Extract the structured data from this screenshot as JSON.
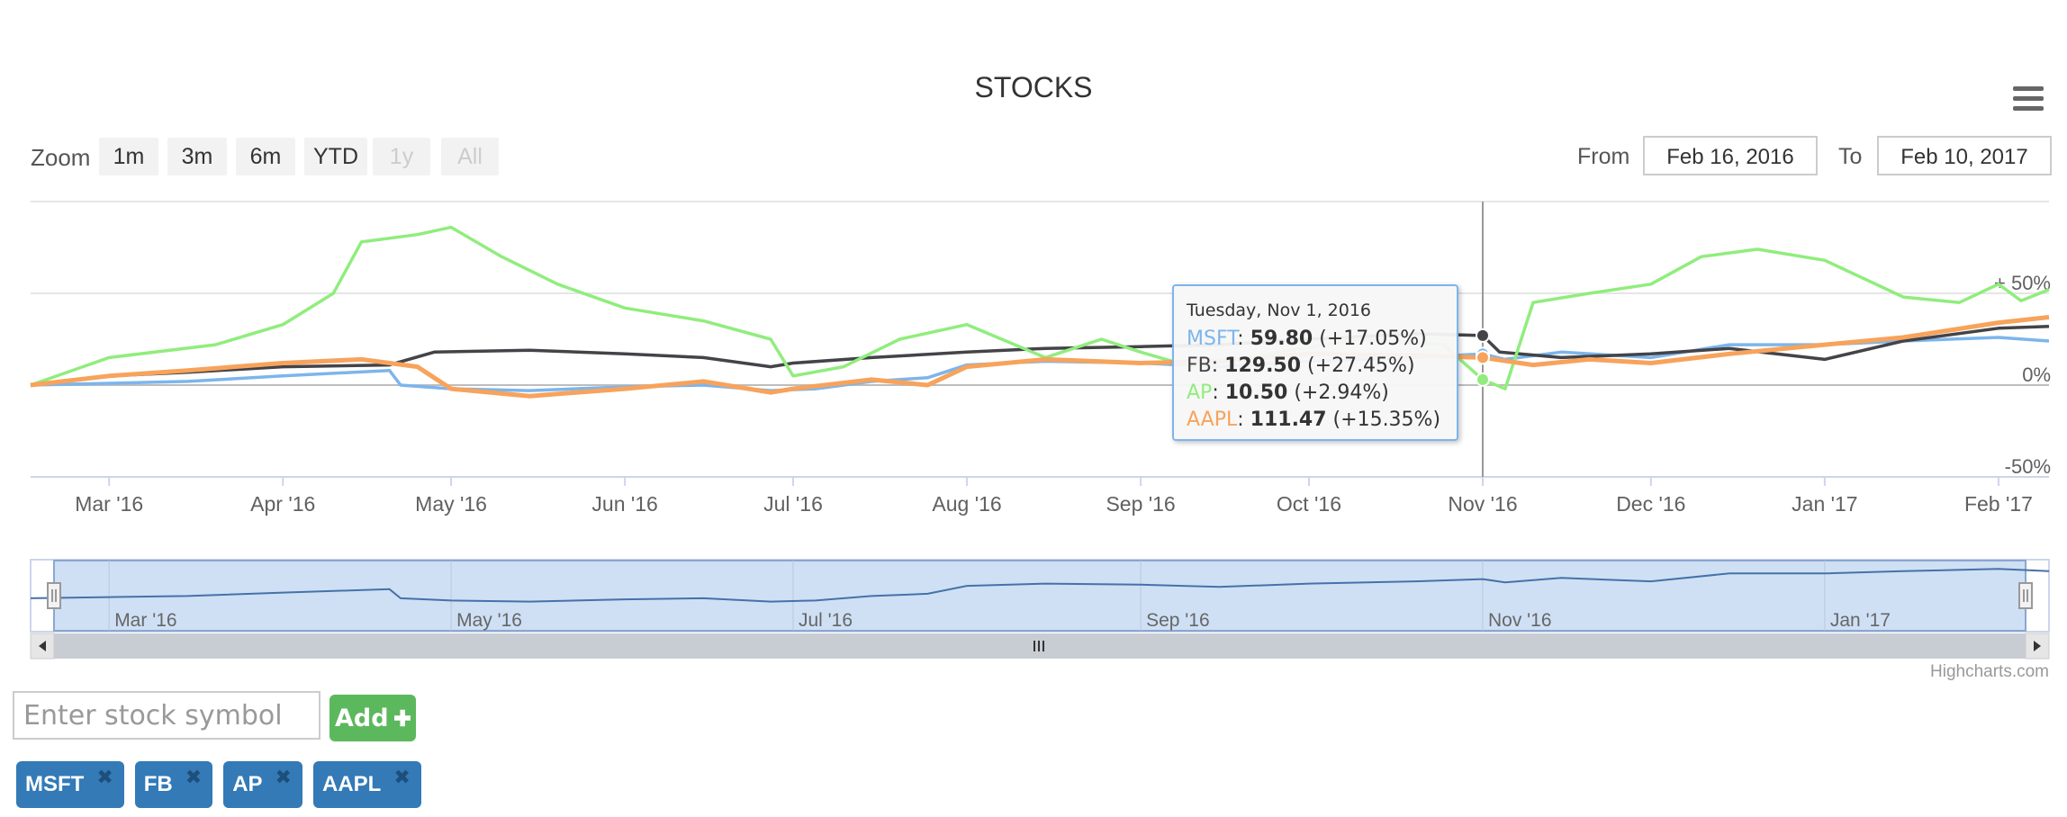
{
  "title": "STOCKS",
  "range_selector": {
    "zoom_label": "Zoom",
    "buttons": [
      {
        "label": "1m",
        "enabled": true
      },
      {
        "label": "3m",
        "enabled": true
      },
      {
        "label": "6m",
        "enabled": true
      },
      {
        "label": "YTD",
        "enabled": true
      },
      {
        "label": "1y",
        "enabled": false
      },
      {
        "label": "All",
        "enabled": false
      }
    ],
    "from_label": "From",
    "from_value": "Feb 16, 2016",
    "to_label": "To",
    "to_value": "Feb 10, 2017"
  },
  "menu_icon": "hamburger-icon",
  "credits": "Highcharts.com",
  "tooltip": {
    "date": "Tuesday, Nov 1, 2016",
    "rows": [
      {
        "name": "MSFT",
        "value": "59.80",
        "change": "(+17.05%)",
        "color": "#7cb5ec"
      },
      {
        "name": "FB",
        "value": "129.50",
        "change": "(+27.45%)",
        "color": "#434348"
      },
      {
        "name": "AP",
        "value": "10.50",
        "change": "(+2.94%)",
        "color": "#90ed7d"
      },
      {
        "name": "AAPL",
        "value": "111.47",
        "change": "(+15.35%)",
        "color": "#f7a35c"
      }
    ]
  },
  "input": {
    "placeholder": "Enter stock symbol"
  },
  "add_button": {
    "label": "Add"
  },
  "tags": [
    {
      "label": "MSFT"
    },
    {
      "label": "FB"
    },
    {
      "label": "AP"
    },
    {
      "label": "AAPL"
    }
  ],
  "chart_data": {
    "type": "line",
    "title": "STOCKS",
    "ylabel": "",
    "xlabel": "",
    "ylim": [
      -50,
      100
    ],
    "ytick_labels": [
      {
        "value": 50,
        "label": "+ 50%"
      },
      {
        "value": 0,
        "label": "0%"
      },
      {
        "value": -50,
        "label": "-50%"
      }
    ],
    "x_range": [
      "2016-02-16",
      "2017-02-10"
    ],
    "x_ticks": [
      {
        "date": "2016-03-01",
        "label": "Mar '16"
      },
      {
        "date": "2016-04-01",
        "label": "Apr '16"
      },
      {
        "date": "2016-05-01",
        "label": "May '16"
      },
      {
        "date": "2016-06-01",
        "label": "Jun '16"
      },
      {
        "date": "2016-07-01",
        "label": "Jul '16"
      },
      {
        "date": "2016-08-01",
        "label": "Aug '16"
      },
      {
        "date": "2016-09-01",
        "label": "Sep '16"
      },
      {
        "date": "2016-10-01",
        "label": "Oct '16"
      },
      {
        "date": "2016-11-01",
        "label": "Nov '16"
      },
      {
        "date": "2016-12-01",
        "label": "Dec '16"
      },
      {
        "date": "2017-01-01",
        "label": "Jan '17"
      },
      {
        "date": "2017-02-01",
        "label": "Feb '17"
      }
    ],
    "crosshair_date": "2016-11-01",
    "grid": true,
    "legend": "none",
    "series": [
      {
        "name": "MSFT",
        "color": "#7cb5ec",
        "points": [
          [
            "2016-02-16",
            0
          ],
          [
            "2016-03-01",
            1
          ],
          [
            "2016-03-15",
            2
          ],
          [
            "2016-04-01",
            5
          ],
          [
            "2016-04-20",
            8
          ],
          [
            "2016-04-22",
            0
          ],
          [
            "2016-05-01",
            -2
          ],
          [
            "2016-05-15",
            -3
          ],
          [
            "2016-06-01",
            -1
          ],
          [
            "2016-06-15",
            0
          ],
          [
            "2016-06-27",
            -3
          ],
          [
            "2016-07-05",
            -2
          ],
          [
            "2016-07-15",
            2
          ],
          [
            "2016-07-25",
            4
          ],
          [
            "2016-08-01",
            11
          ],
          [
            "2016-08-15",
            13
          ],
          [
            "2016-09-01",
            12
          ],
          [
            "2016-09-15",
            10
          ],
          [
            "2016-10-01",
            13
          ],
          [
            "2016-10-20",
            15
          ],
          [
            "2016-11-01",
            17
          ],
          [
            "2016-11-05",
            14
          ],
          [
            "2016-11-15",
            18
          ],
          [
            "2016-12-01",
            15
          ],
          [
            "2016-12-15",
            22
          ],
          [
            "2017-01-01",
            22
          ],
          [
            "2017-01-15",
            24
          ],
          [
            "2017-02-01",
            26
          ],
          [
            "2017-02-10",
            24
          ]
        ]
      },
      {
        "name": "FB",
        "color": "#434348",
        "points": [
          [
            "2016-02-16",
            0
          ],
          [
            "2016-03-01",
            5
          ],
          [
            "2016-03-15",
            7
          ],
          [
            "2016-04-01",
            10
          ],
          [
            "2016-04-20",
            11
          ],
          [
            "2016-04-28",
            18
          ],
          [
            "2016-05-15",
            19
          ],
          [
            "2016-06-01",
            17
          ],
          [
            "2016-06-15",
            15
          ],
          [
            "2016-06-27",
            10
          ],
          [
            "2016-07-01",
            12
          ],
          [
            "2016-07-15",
            15
          ],
          [
            "2016-08-01",
            18
          ],
          [
            "2016-08-15",
            20
          ],
          [
            "2016-09-01",
            21
          ],
          [
            "2016-09-15",
            22
          ],
          [
            "2016-10-01",
            25
          ],
          [
            "2016-10-20",
            28
          ],
          [
            "2016-11-01",
            27
          ],
          [
            "2016-11-04",
            18
          ],
          [
            "2016-11-15",
            15
          ],
          [
            "2016-12-01",
            17
          ],
          [
            "2016-12-15",
            20
          ],
          [
            "2017-01-01",
            14
          ],
          [
            "2017-01-15",
            24
          ],
          [
            "2017-02-01",
            31
          ],
          [
            "2017-02-10",
            32
          ]
        ]
      },
      {
        "name": "AP",
        "color": "#90ed7d",
        "points": [
          [
            "2016-02-16",
            0
          ],
          [
            "2016-03-01",
            15
          ],
          [
            "2016-03-20",
            22
          ],
          [
            "2016-04-01",
            33
          ],
          [
            "2016-04-10",
            50
          ],
          [
            "2016-04-15",
            78
          ],
          [
            "2016-04-25",
            82
          ],
          [
            "2016-05-01",
            86
          ],
          [
            "2016-05-10",
            70
          ],
          [
            "2016-05-20",
            55
          ],
          [
            "2016-06-01",
            42
          ],
          [
            "2016-06-15",
            35
          ],
          [
            "2016-06-27",
            25
          ],
          [
            "2016-07-01",
            5
          ],
          [
            "2016-07-10",
            10
          ],
          [
            "2016-07-20",
            25
          ],
          [
            "2016-08-01",
            33
          ],
          [
            "2016-08-15",
            15
          ],
          [
            "2016-08-25",
            25
          ],
          [
            "2016-09-01",
            18
          ],
          [
            "2016-09-10",
            10
          ],
          [
            "2016-10-10",
            25
          ],
          [
            "2016-10-25",
            22
          ],
          [
            "2016-11-01",
            3
          ],
          [
            "2016-11-05",
            -2
          ],
          [
            "2016-11-10",
            45
          ],
          [
            "2016-11-20",
            50
          ],
          [
            "2016-12-01",
            55
          ],
          [
            "2016-12-10",
            70
          ],
          [
            "2016-12-20",
            74
          ],
          [
            "2017-01-01",
            68
          ],
          [
            "2017-01-15",
            48
          ],
          [
            "2017-01-25",
            45
          ],
          [
            "2017-02-01",
            55
          ],
          [
            "2017-02-05",
            46
          ],
          [
            "2017-02-10",
            52
          ]
        ]
      },
      {
        "name": "AAPL",
        "color": "#f7a35c",
        "points": [
          [
            "2016-02-16",
            0
          ],
          [
            "2016-03-01",
            5
          ],
          [
            "2016-03-15",
            8
          ],
          [
            "2016-04-01",
            12
          ],
          [
            "2016-04-15",
            14
          ],
          [
            "2016-04-25",
            10
          ],
          [
            "2016-05-01",
            -2
          ],
          [
            "2016-05-15",
            -6
          ],
          [
            "2016-06-01",
            -2
          ],
          [
            "2016-06-15",
            2
          ],
          [
            "2016-06-27",
            -4
          ],
          [
            "2016-07-01",
            -2
          ],
          [
            "2016-07-15",
            3
          ],
          [
            "2016-07-25",
            0
          ],
          [
            "2016-08-01",
            10
          ],
          [
            "2016-08-15",
            14
          ],
          [
            "2016-09-01",
            12
          ],
          [
            "2016-09-15",
            13
          ],
          [
            "2016-10-01",
            17
          ],
          [
            "2016-10-20",
            16
          ],
          [
            "2016-11-01",
            15
          ],
          [
            "2016-11-10",
            11
          ],
          [
            "2016-11-20",
            14
          ],
          [
            "2016-12-01",
            12
          ],
          [
            "2016-12-15",
            17
          ],
          [
            "2017-01-01",
            22
          ],
          [
            "2017-01-15",
            26
          ],
          [
            "2017-02-01",
            34
          ],
          [
            "2017-02-10",
            37
          ]
        ]
      }
    ],
    "navigator": {
      "series": "MSFT",
      "x_ticks": [
        {
          "date": "2016-03-01",
          "label": "Mar '16"
        },
        {
          "date": "2016-05-01",
          "label": "May '16"
        },
        {
          "date": "2016-07-01",
          "label": "Jul '16"
        },
        {
          "date": "2016-09-01",
          "label": "Sep '16"
        },
        {
          "date": "2016-11-01",
          "label": "Nov '16"
        },
        {
          "date": "2017-01-01",
          "label": "Jan '17"
        }
      ]
    }
  }
}
